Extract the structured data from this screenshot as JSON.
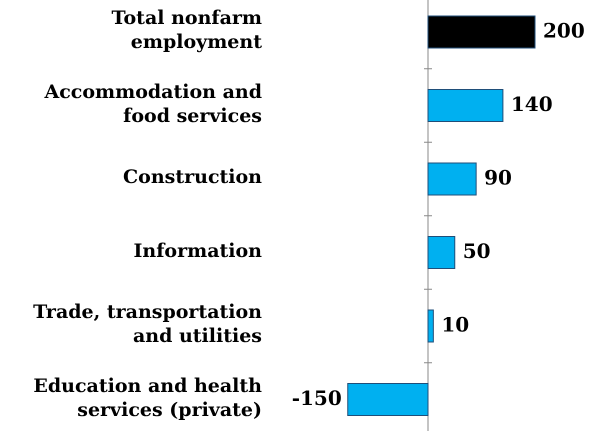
{
  "chart_data": {
    "type": "bar",
    "orientation": "horizontal",
    "categories": [
      "Total nonfarm\nemployment",
      "Accommodation and\nfood services",
      "Construction",
      "Information",
      "Trade, transportation\nand utilities",
      "Education and health\nservices (private)"
    ],
    "values": [
      200,
      140,
      90,
      50,
      10,
      -150
    ],
    "colors": [
      "#000000",
      "#00b0f0",
      "#00b0f0",
      "#00b0f0",
      "#00b0f0",
      "#00b0f0"
    ]
  }
}
